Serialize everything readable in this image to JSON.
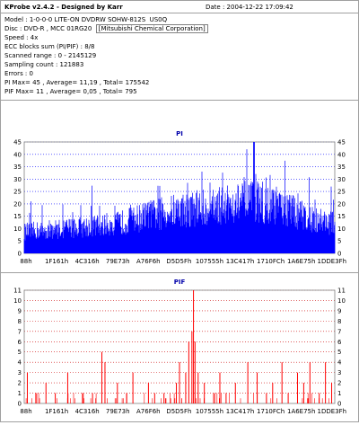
{
  "header": {
    "title": "KProbe v2.4.2 - Designed by Karr",
    "date": "Date : 2004-12-22 17:09:42"
  },
  "info": {
    "model": "Model : 1-0-0-0 LITE-ON DVDRW SOHW-812S  US0Q",
    "disc_label": "Disc : DVD-R , MCC 01RG20  ",
    "disc_maker": "[Mitsubishi Chemical Corporation]",
    "speed": "Speed : 4x",
    "ecc": "ECC blocks sum (PI/PIF) : 8/8",
    "scanned_range": "Scanned range : 0 - 2145129",
    "sampling": "Sampling count : 121883",
    "errors": "Errors : 0",
    "pi_summary": "PI Max= 45 , Average= 11,19 , Total= 175542",
    "pif_summary": "PIF Max= 11 , Average= 0,05 , Total= 795"
  },
  "colors": {
    "pi": "#0000ff",
    "pif": "#ff0000",
    "grid_pi": "#0000ff",
    "grid_pif": "#cc0000",
    "title": "#0000aa"
  },
  "chart_data": [
    {
      "type": "bar",
      "title": "PI",
      "xlabel": "",
      "ylabel": "",
      "ylim": [
        0,
        45
      ],
      "yticks": [
        0,
        5,
        10,
        15,
        20,
        25,
        30,
        35,
        40,
        45
      ],
      "xticks": [
        "88h",
        "1F161h",
        "4C316h",
        "79E73h",
        "A76F6h",
        "D5D5Fh",
        "107555h",
        "13C417h",
        "1710FCh",
        "1A6E75h",
        "1DDE3Fh"
      ],
      "grid": "horizontal dotted",
      "series": [
        {
          "x_fraction": [
            0,
            0.1,
            0.2,
            0.3,
            0.4,
            0.5,
            0.6,
            0.7,
            0.75,
            0.8,
            0.9,
            1
          ],
          "base": [
            8,
            9,
            10,
            11,
            14,
            16,
            17,
            19,
            19,
            18,
            14,
            11
          ],
          "peak_fraction": 0.74,
          "peak_value": 45
        }
      ]
    },
    {
      "type": "bar",
      "title": "PIF",
      "xlabel": "",
      "ylabel": "",
      "ylim": [
        0,
        11
      ],
      "yticks": [
        0,
        1,
        2,
        3,
        4,
        5,
        6,
        7,
        8,
        9,
        10,
        11
      ],
      "xticks": [
        "88h",
        "1F161h",
        "4C316h",
        "79E73h",
        "A76F6h",
        "D5D5Fh",
        "107555h",
        "13C417h",
        "1710FCh",
        "1A6E75h",
        "1DDE3Fh"
      ],
      "grid": "horizontal dotted",
      "series": [
        {
          "spikes_fraction": [
            0.01,
            0.04,
            0.07,
            0.1,
            0.14,
            0.19,
            0.22,
            0.25,
            0.26,
            0.3,
            0.33,
            0.35,
            0.4,
            0.42,
            0.45,
            0.49,
            0.52,
            0.5,
            0.53,
            0.54,
            0.545,
            0.55,
            0.56,
            0.58,
            0.61,
            0.63,
            0.65,
            0.68,
            0.72,
            0.75,
            0.78,
            0.8,
            0.83,
            0.85,
            0.88,
            0.9,
            0.92,
            0.95,
            0.97,
            0.99
          ],
          "spikes_value": [
            3,
            1,
            2,
            1,
            3,
            1,
            1,
            5,
            4,
            2,
            1,
            3,
            2,
            1,
            1,
            2,
            3,
            4,
            6,
            7,
            11,
            6,
            3,
            2,
            1,
            3,
            1,
            2,
            4,
            3,
            1,
            2,
            4,
            1,
            3,
            2,
            4,
            1,
            4,
            2
          ]
        }
      ]
    }
  ]
}
